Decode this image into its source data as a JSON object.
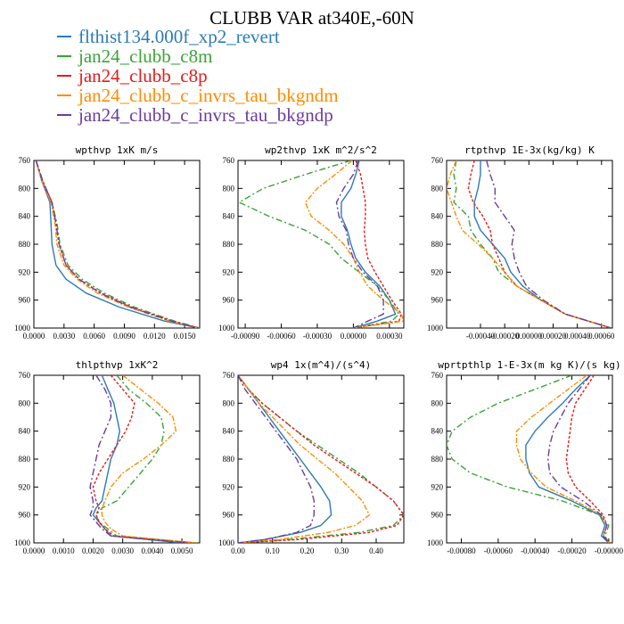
{
  "title": "CLUBB VAR at340E,-60N",
  "legend": [
    {
      "name": "flthist134.000f_xp2_revert",
      "color": "#2c7bb6",
      "dash": ""
    },
    {
      "name": "jan24_clubb_c8m",
      "color": "#3aa335",
      "dash": "7,3,2,3"
    },
    {
      "name": "jan24_clubb_c8p",
      "color": "#e31a1c",
      "dash": "3,2"
    },
    {
      "name": "jan24_clubb_c_invrs_tau_bkgndm",
      "color": "#ff8c00",
      "dash": "6,2,2,2"
    },
    {
      "name": "jan24_clubb_c_invrs_tau_bkgndp",
      "color": "#6a3d9a",
      "dash": "8,3,2,3"
    }
  ],
  "chart_data": [
    {
      "type": "line",
      "title": "wpthvp  1xK m/s",
      "xlim": [
        0,
        0.0165
      ],
      "ylim": [
        760,
        1000
      ],
      "xticks": [
        "0.0000",
        "0.0030",
        "0.0060",
        "0.0090",
        "0.0120",
        "0.0150"
      ],
      "xtick_values": [
        0,
        0.003,
        0.006,
        0.009,
        0.012,
        0.015
      ],
      "yticks": [
        "760",
        "800",
        "840",
        "880",
        "920",
        "960",
        "1000"
      ],
      "y": [
        760,
        790,
        820,
        850,
        880,
        910,
        930,
        950,
        970,
        990,
        1000
      ],
      "series": [
        {
          "name": "flthist134.000f_xp2_revert",
          "x": [
            0.0002,
            0.0008,
            0.0016,
            0.0017,
            0.0018,
            0.0022,
            0.0032,
            0.0052,
            0.0085,
            0.013,
            0.0164
          ]
        },
        {
          "name": "jan24_clubb_c8m",
          "x": [
            0.0002,
            0.0009,
            0.0018,
            0.0023,
            0.0026,
            0.0034,
            0.0048,
            0.007,
            0.01,
            0.014,
            0.0165
          ]
        },
        {
          "name": "jan24_clubb_c8p",
          "x": [
            0.0002,
            0.0009,
            0.0018,
            0.0022,
            0.0025,
            0.0032,
            0.0045,
            0.0067,
            0.0097,
            0.0138,
            0.0164
          ]
        },
        {
          "name": "jan24_clubb_c_invrs_tau_bkgndm",
          "x": [
            0.0002,
            0.0008,
            0.0017,
            0.0021,
            0.0023,
            0.003,
            0.0043,
            0.0063,
            0.0094,
            0.0135,
            0.0163
          ]
        },
        {
          "name": "jan24_clubb_c_invrs_tau_bkgndp",
          "x": [
            0.0002,
            0.0009,
            0.0018,
            0.0022,
            0.0025,
            0.0032,
            0.0045,
            0.0066,
            0.0096,
            0.0137,
            0.0164
          ]
        }
      ]
    },
    {
      "type": "line",
      "title": "wp2thvp  1xK m^2/s^2",
      "xlim": [
        -0.00096,
        0.00042
      ],
      "ylim": [
        760,
        1000
      ],
      "xticks": [
        "-0.00090",
        "-0.00060",
        "-0.00030",
        "0.00000",
        "0.00030"
      ],
      "xtick_values": [
        -0.0009,
        -0.0006,
        -0.0003,
        0,
        0.0003
      ],
      "yticks": [
        "760",
        "800",
        "840",
        "880",
        "920",
        "960",
        "1000"
      ],
      "y": [
        760,
        780,
        800,
        820,
        840,
        860,
        880,
        900,
        920,
        940,
        960,
        980,
        990,
        1000
      ],
      "series": [
        {
          "name": "flthist134.000f_xp2_revert",
          "x": [
            5e-05,
            2e-05,
            -2e-05,
            -0.0001,
            -0.0001,
            -5e-05,
            -2e-05,
            2e-05,
            0.0001,
            0.00022,
            0.0003,
            0.00035,
            0.0002,
            0.0
          ]
        },
        {
          "name": "jan24_clubb_c8m",
          "x": [
            -2e-05,
            -0.0004,
            -0.00075,
            -0.00095,
            -0.0007,
            -0.0004,
            -0.0002,
            -0.0001,
            5e-05,
            0.0002,
            0.0003,
            0.00038,
            0.00032,
            0.0
          ]
        },
        {
          "name": "jan24_clubb_c8p",
          "x": [
            2e-05,
            6e-05,
            8e-05,
            0.0001,
            0.0001,
            9e-05,
            0.0001,
            0.00012,
            0.00018,
            0.00025,
            0.00032,
            0.0004,
            0.00038,
            0.0
          ]
        },
        {
          "name": "jan24_clubb_c_invrs_tau_bkgndm",
          "x": [
            -1e-05,
            -0.00015,
            -0.0003,
            -0.0004,
            -0.00035,
            -0.0002,
            -8e-05,
            0.0,
            5e-05,
            0.00012,
            0.00025,
            0.0004,
            0.00042,
            0.0
          ]
        },
        {
          "name": "jan24_clubb_c_invrs_tau_bkgndp",
          "x": [
            4e-05,
            0.0,
            -8e-05,
            -0.00014,
            -0.00012,
            -6e-05,
            -4e-05,
            0.0,
            8e-05,
            0.0002,
            0.00025,
            0.00025,
            0.00012,
            0.0
          ]
        }
      ]
    },
    {
      "type": "line",
      "title": "rtpthvp  1E-3x(kg/kg) K",
      "xlim": [
        -0.00068,
        0.00069
      ],
      "ylim": [
        760,
        1000
      ],
      "xticks": [
        "-0.00040",
        "-0.00020",
        "0.00000",
        "0.00020",
        "0.00040",
        "0.00060"
      ],
      "xtick_values": [
        -0.0004,
        -0.0002,
        0,
        0.0002,
        0.0004,
        0.0006
      ],
      "yticks": [
        "760",
        "800",
        "840",
        "880",
        "920",
        "960",
        "1000"
      ],
      "y": [
        760,
        780,
        800,
        820,
        840,
        860,
        880,
        900,
        920,
        940,
        960,
        980,
        1000
      ],
      "series": [
        {
          "name": "flthist134.000f_xp2_revert",
          "x": [
            -0.0004,
            -0.0004,
            -0.00042,
            -0.00045,
            -0.00045,
            -0.0004,
            -0.0003,
            -0.0002,
            -0.00015,
            -5e-05,
            0.0001,
            0.0003,
            0.00068
          ]
        },
        {
          "name": "jan24_clubb_c8m",
          "x": [
            -0.0006,
            -0.00062,
            -0.0006,
            -0.00062,
            -0.0005,
            -0.00048,
            -0.0004,
            -0.0003,
            -0.00025,
            -0.0001,
            0.0001,
            0.0003,
            0.00068
          ]
        },
        {
          "name": "jan24_clubb_c8p",
          "x": [
            -0.00045,
            -0.00048,
            -0.0005,
            -0.00046,
            -0.00038,
            -0.00032,
            -0.0003,
            -0.00025,
            -0.0002,
            -0.0001,
            0.0001,
            0.0003,
            0.00068
          ]
        },
        {
          "name": "jan24_clubb_c_invrs_tau_bkgndm",
          "x": [
            -0.0006,
            -0.00065,
            -0.00068,
            -0.00064,
            -0.0006,
            -0.00055,
            -0.00042,
            -0.0003,
            -0.0002,
            -0.0001,
            0.0001,
            0.0003,
            0.00068
          ]
        },
        {
          "name": "jan24_clubb_c_invrs_tau_bkgndp",
          "x": [
            -0.00035,
            -0.00032,
            -0.00028,
            -0.00028,
            -0.0002,
            -0.00012,
            -0.00014,
            -0.00012,
            -8e-05,
            -2e-05,
            0.00012,
            0.0003,
            0.00068
          ]
        }
      ]
    },
    {
      "type": "line",
      "title": "thlpthvp  1xK^2",
      "xlim": [
        0,
        0.0056
      ],
      "ylim": [
        760,
        1000
      ],
      "xticks": [
        "0.0000",
        "0.0010",
        "0.0020",
        "0.0030",
        "0.0040",
        "0.0050"
      ],
      "xtick_values": [
        0,
        0.001,
        0.002,
        0.003,
        0.004,
        0.005
      ],
      "yticks": [
        "760",
        "800",
        "840",
        "880",
        "920",
        "960",
        "1000"
      ],
      "y": [
        760,
        780,
        800,
        820,
        840,
        860,
        880,
        900,
        920,
        940,
        950,
        960,
        970,
        980,
        990,
        1000
      ],
      "series": [
        {
          "name": "flthist134.000f_xp2_revert",
          "x": [
            0.0023,
            0.0025,
            0.0027,
            0.0028,
            0.0029,
            0.0028,
            0.0026,
            0.0025,
            0.0024,
            0.0023,
            0.0021,
            0.002,
            0.0022,
            0.0024,
            0.0026,
            0.005
          ]
        },
        {
          "name": "jan24_clubb_c8m",
          "x": [
            0.0028,
            0.0032,
            0.0038,
            0.0043,
            0.0044,
            0.0043,
            0.004,
            0.0036,
            0.0032,
            0.0028,
            0.0023,
            0.0021,
            0.0022,
            0.0025,
            0.0028,
            0.0055
          ]
        },
        {
          "name": "jan24_clubb_c8p",
          "x": [
            0.0026,
            0.003,
            0.0034,
            0.0033,
            0.0031,
            0.0028,
            0.0025,
            0.0022,
            0.002,
            0.0021,
            0.0022,
            0.0021,
            0.0022,
            0.0024,
            0.0027,
            0.0054
          ]
        },
        {
          "name": "jan24_clubb_c_invrs_tau_bkgndm",
          "x": [
            0.003,
            0.0036,
            0.0042,
            0.0047,
            0.0048,
            0.0043,
            0.0037,
            0.003,
            0.0026,
            0.0024,
            0.0023,
            0.0023,
            0.0024,
            0.0026,
            0.003,
            0.0055
          ]
        },
        {
          "name": "jan24_clubb_c_invrs_tau_bkgndp",
          "x": [
            0.0021,
            0.0024,
            0.0026,
            0.0026,
            0.0024,
            0.0022,
            0.0021,
            0.002,
            0.0019,
            0.002,
            0.002,
            0.0019,
            0.0021,
            0.0023,
            0.0026,
            0.0052
          ]
        }
      ]
    },
    {
      "type": "line",
      "title": "wp4  1x(m^4)/(s^4)",
      "xlim": [
        0,
        0.48
      ],
      "ylim": [
        760,
        1000
      ],
      "xticks": [
        "0.00",
        "0.10",
        "0.20",
        "0.30",
        "0.40"
      ],
      "xtick_values": [
        0,
        0.1,
        0.2,
        0.3,
        0.4
      ],
      "yticks": [
        "760",
        "800",
        "840",
        "880",
        "920",
        "960",
        "1000"
      ],
      "y": [
        760,
        780,
        800,
        820,
        840,
        860,
        880,
        900,
        920,
        940,
        960,
        975,
        985,
        995,
        1000
      ],
      "series": [
        {
          "name": "flthist134.000f_xp2_revert",
          "x": [
            0.0,
            0.03,
            0.06,
            0.09,
            0.12,
            0.15,
            0.18,
            0.21,
            0.24,
            0.265,
            0.27,
            0.24,
            0.18,
            0.08,
            0.0
          ]
        },
        {
          "name": "jan24_clubb_c8m",
          "x": [
            0.0,
            0.03,
            0.07,
            0.12,
            0.17,
            0.23,
            0.29,
            0.35,
            0.4,
            0.45,
            0.48,
            0.45,
            0.35,
            0.15,
            0.0
          ]
        },
        {
          "name": "jan24_clubb_c8p",
          "x": [
            0.0,
            0.03,
            0.07,
            0.12,
            0.17,
            0.22,
            0.28,
            0.34,
            0.4,
            0.45,
            0.48,
            0.46,
            0.38,
            0.18,
            0.0
          ]
        },
        {
          "name": "jan24_clubb_c_invrs_tau_bkgndm",
          "x": [
            0.0,
            0.03,
            0.06,
            0.1,
            0.14,
            0.18,
            0.23,
            0.28,
            0.32,
            0.36,
            0.38,
            0.34,
            0.26,
            0.12,
            0.0
          ]
        },
        {
          "name": "jan24_clubb_c_invrs_tau_bkgndp",
          "x": [
            0.0,
            0.02,
            0.05,
            0.08,
            0.11,
            0.14,
            0.17,
            0.19,
            0.21,
            0.22,
            0.22,
            0.21,
            0.17,
            0.08,
            0.0
          ]
        }
      ]
    },
    {
      "type": "line",
      "title": "wprtpthlp  1-E-3x(m kg K)/(s kg)",
      "xlim": [
        -0.00088,
        2e-05
      ],
      "ylim": [
        760,
        1000
      ],
      "xticks": [
        "-0.00080",
        "-0.00060",
        "-0.00040",
        "-0.00020",
        "-0.00000"
      ],
      "xtick_values": [
        -0.0008,
        -0.0006,
        -0.0004,
        -0.0002,
        0
      ],
      "yticks": [
        "760",
        "800",
        "840",
        "880",
        "920",
        "960",
        "1000"
      ],
      "y": [
        760,
        780,
        800,
        820,
        840,
        860,
        880,
        900,
        920,
        940,
        960,
        975,
        990,
        1000
      ],
      "series": [
        {
          "name": "flthist134.000f_xp2_revert",
          "x": [
            -0.0001,
            -0.00018,
            -0.00025,
            -0.00033,
            -0.0004,
            -0.00045,
            -0.00045,
            -0.00043,
            -0.00038,
            -0.0002,
            -5e-05,
            -2e-05,
            -4e-05,
            0.0
          ]
        },
        {
          "name": "jan24_clubb_c8m",
          "x": [
            -0.0002,
            -0.0004,
            -0.0006,
            -0.00075,
            -0.00085,
            -0.00088,
            -0.00085,
            -0.00075,
            -0.00055,
            -0.00025,
            -5e-05,
            0.0,
            -2e-05,
            0.0
          ]
        },
        {
          "name": "jan24_clubb_c8p",
          "x": [
            -8e-05,
            -0.00013,
            -0.00018,
            -0.0002,
            -0.00021,
            -0.00022,
            -0.00023,
            -0.00022,
            -0.00018,
            -0.0001,
            -3e-05,
            -1e-05,
            -3e-05,
            0.0
          ]
        },
        {
          "name": "jan24_clubb_c_invrs_tau_bkgndm",
          "x": [
            -0.00012,
            -0.00022,
            -0.00032,
            -0.00042,
            -0.0005,
            -0.0005,
            -0.00048,
            -0.00042,
            -0.00034,
            -0.00018,
            -4e-05,
            -1e-05,
            -3e-05,
            0.0
          ]
        },
        {
          "name": "jan24_clubb_c_invrs_tau_bkgndp",
          "x": [
            -0.0001,
            -0.00016,
            -0.00022,
            -0.00026,
            -0.0003,
            -0.00032,
            -0.00033,
            -0.00032,
            -0.00026,
            -0.00014,
            -4e-05,
            -1e-05,
            -3e-05,
            0.0
          ]
        }
      ]
    }
  ]
}
